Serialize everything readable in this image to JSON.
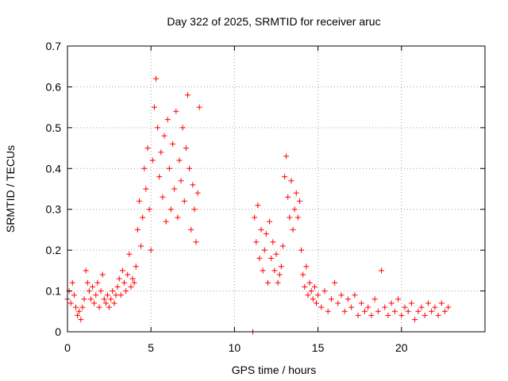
{
  "chart_data": {
    "type": "scatter",
    "title": "Day 322 of 2025, SRMTID for receiver aruc",
    "xlabel": "GPS time / hours",
    "ylabel": "SRMTID / TECUs",
    "xlim": [
      0,
      25
    ],
    "ylim": [
      0,
      0.7
    ],
    "xticks": [
      0,
      5,
      10,
      15,
      20
    ],
    "yticks": [
      0,
      0.1,
      0.2,
      0.3,
      0.4,
      0.5,
      0.6,
      0.7
    ],
    "grid": true,
    "marker": "+",
    "series_color": "#ff0000",
    "series": [
      {
        "name": "SRMTID",
        "points": [
          [
            0.0,
            0.08
          ],
          [
            0.1,
            0.1
          ],
          [
            0.2,
            0.07
          ],
          [
            0.3,
            0.12
          ],
          [
            0.4,
            0.09
          ],
          [
            0.5,
            0.06
          ],
          [
            0.6,
            0.04
          ],
          [
            0.7,
            0.05
          ],
          [
            0.8,
            0.03
          ],
          [
            0.9,
            0.06
          ],
          [
            1.0,
            0.08
          ],
          [
            1.1,
            0.15
          ],
          [
            1.2,
            0.12
          ],
          [
            1.3,
            0.1
          ],
          [
            1.4,
            0.08
          ],
          [
            1.5,
            0.11
          ],
          [
            1.6,
            0.07
          ],
          [
            1.7,
            0.09
          ],
          [
            1.8,
            0.12
          ],
          [
            1.9,
            0.06
          ],
          [
            2.0,
            0.1
          ],
          [
            2.1,
            0.14
          ],
          [
            2.2,
            0.08
          ],
          [
            2.3,
            0.07
          ],
          [
            2.4,
            0.09
          ],
          [
            2.5,
            0.06
          ],
          [
            2.6,
            0.08
          ],
          [
            2.7,
            0.1
          ],
          [
            2.8,
            0.07
          ],
          [
            2.9,
            0.09
          ],
          [
            3.0,
            0.11
          ],
          [
            3.1,
            0.13
          ],
          [
            3.2,
            0.09
          ],
          [
            3.3,
            0.15
          ],
          [
            3.4,
            0.12
          ],
          [
            3.5,
            0.1
          ],
          [
            3.6,
            0.14
          ],
          [
            3.7,
            0.19
          ],
          [
            3.8,
            0.11
          ],
          [
            3.9,
            0.13
          ],
          [
            4.0,
            0.12
          ],
          [
            4.1,
            0.16
          ],
          [
            4.2,
            0.25
          ],
          [
            4.3,
            0.32
          ],
          [
            4.4,
            0.21
          ],
          [
            4.5,
            0.28
          ],
          [
            4.6,
            0.4
          ],
          [
            4.7,
            0.35
          ],
          [
            4.8,
            0.45
          ],
          [
            4.9,
            0.3
          ],
          [
            5.0,
            0.2
          ],
          [
            5.1,
            0.42
          ],
          [
            5.2,
            0.55
          ],
          [
            5.3,
            0.62
          ],
          [
            5.4,
            0.5
          ],
          [
            5.5,
            0.38
          ],
          [
            5.6,
            0.44
          ],
          [
            5.7,
            0.33
          ],
          [
            5.8,
            0.48
          ],
          [
            5.9,
            0.27
          ],
          [
            6.0,
            0.52
          ],
          [
            6.1,
            0.4
          ],
          [
            6.2,
            0.3
          ],
          [
            6.3,
            0.46
          ],
          [
            6.4,
            0.35
          ],
          [
            6.5,
            0.54
          ],
          [
            6.6,
            0.28
          ],
          [
            6.7,
            0.42
          ],
          [
            6.8,
            0.37
          ],
          [
            6.9,
            0.5
          ],
          [
            7.0,
            0.32
          ],
          [
            7.1,
            0.45
          ],
          [
            7.2,
            0.58
          ],
          [
            7.3,
            0.4
          ],
          [
            7.4,
            0.25
          ],
          [
            7.5,
            0.36
          ],
          [
            7.6,
            0.3
          ],
          [
            7.7,
            0.22
          ],
          [
            7.8,
            0.34
          ],
          [
            7.9,
            0.55
          ],
          [
            11.1,
            0.0
          ],
          [
            11.2,
            0.28
          ],
          [
            11.3,
            0.22
          ],
          [
            11.4,
            0.31
          ],
          [
            11.5,
            0.18
          ],
          [
            11.6,
            0.25
          ],
          [
            11.7,
            0.15
          ],
          [
            11.8,
            0.2
          ],
          [
            11.9,
            0.24
          ],
          [
            12.0,
            0.12
          ],
          [
            12.1,
            0.27
          ],
          [
            12.2,
            0.18
          ],
          [
            12.3,
            0.22
          ],
          [
            12.4,
            0.15
          ],
          [
            12.5,
            0.19
          ],
          [
            12.6,
            0.12
          ],
          [
            12.7,
            0.14
          ],
          [
            12.8,
            0.16
          ],
          [
            12.9,
            0.21
          ],
          [
            13.0,
            0.38
          ],
          [
            13.1,
            0.43
          ],
          [
            13.2,
            0.33
          ],
          [
            13.3,
            0.28
          ],
          [
            13.4,
            0.37
          ],
          [
            13.5,
            0.25
          ],
          [
            13.6,
            0.3
          ],
          [
            13.7,
            0.34
          ],
          [
            13.8,
            0.28
          ],
          [
            13.9,
            0.32
          ],
          [
            14.0,
            0.2
          ],
          [
            14.1,
            0.14
          ],
          [
            14.2,
            0.11
          ],
          [
            14.3,
            0.16
          ],
          [
            14.4,
            0.09
          ],
          [
            14.5,
            0.12
          ],
          [
            14.6,
            0.1
          ],
          [
            14.7,
            0.08
          ],
          [
            14.8,
            0.11
          ],
          [
            14.9,
            0.07
          ],
          [
            15.0,
            0.09
          ],
          [
            15.2,
            0.06
          ],
          [
            15.4,
            0.1
          ],
          [
            15.6,
            0.05
          ],
          [
            15.8,
            0.08
          ],
          [
            16.0,
            0.12
          ],
          [
            16.2,
            0.07
          ],
          [
            16.4,
            0.09
          ],
          [
            16.6,
            0.05
          ],
          [
            16.8,
            0.08
          ],
          [
            17.0,
            0.06
          ],
          [
            17.2,
            0.09
          ],
          [
            17.4,
            0.04
          ],
          [
            17.6,
            0.07
          ],
          [
            17.8,
            0.05
          ],
          [
            18.0,
            0.06
          ],
          [
            18.2,
            0.04
          ],
          [
            18.4,
            0.08
          ],
          [
            18.6,
            0.05
          ],
          [
            18.8,
            0.15
          ],
          [
            19.0,
            0.06
          ],
          [
            19.2,
            0.04
          ],
          [
            19.4,
            0.07
          ],
          [
            19.6,
            0.05
          ],
          [
            19.8,
            0.08
          ],
          [
            20.0,
            0.04
          ],
          [
            20.2,
            0.06
          ],
          [
            20.4,
            0.05
          ],
          [
            20.6,
            0.07
          ],
          [
            20.8,
            0.03
          ],
          [
            21.0,
            0.05
          ],
          [
            21.2,
            0.06
          ],
          [
            21.4,
            0.04
          ],
          [
            21.6,
            0.07
          ],
          [
            21.8,
            0.05
          ],
          [
            22.0,
            0.06
          ],
          [
            22.2,
            0.04
          ],
          [
            22.4,
            0.07
          ],
          [
            22.6,
            0.05
          ],
          [
            22.8,
            0.06
          ]
        ]
      }
    ]
  }
}
